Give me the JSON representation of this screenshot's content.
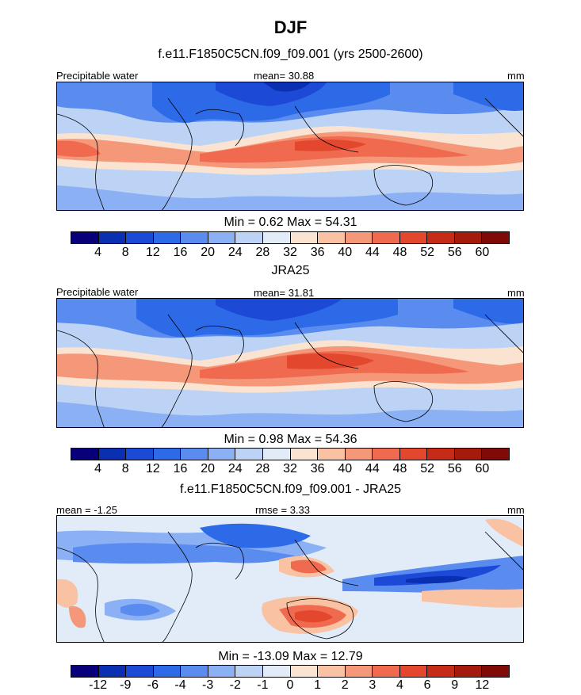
{
  "figure": {
    "title": "DJF"
  },
  "chart_data": [
    {
      "type": "heatmap",
      "title": "f.e11.F1850C5CN.f09_f09.001 (yrs 2500-2600)",
      "left_label": "Precipitable water",
      "center_label": "mean=  30.88",
      "right_label": "mm",
      "minmax_label": "Min =   0.62 Max =  54.31",
      "stats": {
        "mean": 30.88,
        "min": 0.62,
        "max": 54.31
      },
      "colorbar_ticks": [
        "4",
        "8",
        "12",
        "16",
        "20",
        "24",
        "28",
        "32",
        "36",
        "40",
        "44",
        "48",
        "52",
        "56",
        "60"
      ],
      "colorbar_colors": [
        "#07007a",
        "#0a2fb0",
        "#1c49d6",
        "#2c6ae8",
        "#5a8cf0",
        "#8cb0f4",
        "#bdd3f6",
        "#e2ecf8",
        "#fbe3d2",
        "#f9c2a3",
        "#f5987a",
        "#ef6a4e",
        "#e3472d",
        "#c52b16",
        "#a41b0e",
        "#7f0a06"
      ]
    },
    {
      "type": "heatmap",
      "title": "JRA25",
      "left_label": "Precipitable water",
      "center_label": "mean=  31.81",
      "right_label": "mm",
      "minmax_label": "Min =   0.98 Max =  54.36",
      "stats": {
        "mean": 31.81,
        "min": 0.98,
        "max": 54.36
      },
      "colorbar_ticks": [
        "4",
        "8",
        "12",
        "16",
        "20",
        "24",
        "28",
        "32",
        "36",
        "40",
        "44",
        "48",
        "52",
        "56",
        "60"
      ],
      "colorbar_colors": [
        "#07007a",
        "#0a2fb0",
        "#1c49d6",
        "#2c6ae8",
        "#5a8cf0",
        "#8cb0f4",
        "#bdd3f6",
        "#e2ecf8",
        "#fbe3d2",
        "#f9c2a3",
        "#f5987a",
        "#ef6a4e",
        "#e3472d",
        "#c52b16",
        "#a41b0e",
        "#7f0a06"
      ]
    },
    {
      "type": "heatmap",
      "title": "f.e11.F1850C5CN.f09_f09.001 - JRA25",
      "left_label": "mean =  -1.25",
      "center_label": "rmse =   3.33",
      "right_label": "mm",
      "minmax_label": "Min = -13.09 Max =  12.79",
      "stats": {
        "mean": -1.25,
        "rmse": 3.33,
        "min": -13.09,
        "max": 12.79
      },
      "colorbar_ticks": [
        "-12",
        "-9",
        "-6",
        "-4",
        "-3",
        "-2",
        "-1",
        "0",
        "1",
        "2",
        "3",
        "4",
        "6",
        "9",
        "12"
      ],
      "colorbar_colors": [
        "#07007a",
        "#0a2fb0",
        "#1c49d6",
        "#2c6ae8",
        "#5a8cf0",
        "#8cb0f4",
        "#bdd3f6",
        "#e2ecf8",
        "#fbe3d2",
        "#f9c2a3",
        "#f5987a",
        "#ef6a4e",
        "#e3472d",
        "#c52b16",
        "#a41b0e",
        "#7f0a06"
      ]
    }
  ]
}
